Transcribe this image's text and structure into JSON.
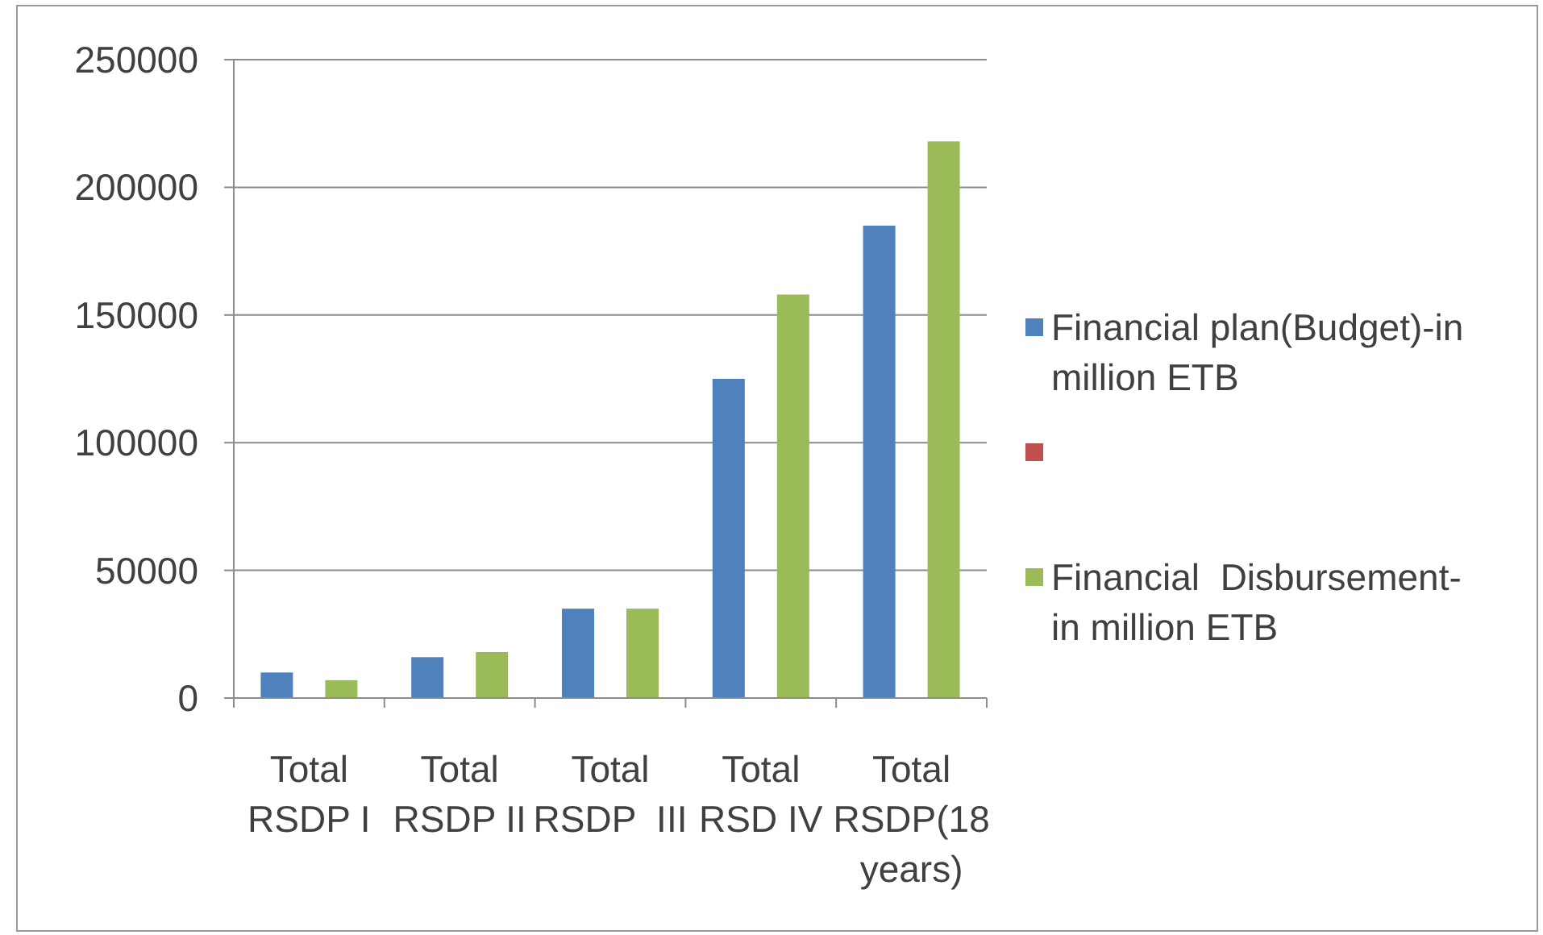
{
  "chart_data": {
    "type": "bar",
    "categories": [
      "Total RSDP I",
      "Total RSDP II",
      "Total RSDP  III",
      "Total RSD IV",
      "Total RSDP(18 years)"
    ],
    "series": [
      {
        "name": "Financial plan(Budget)-in million ETB",
        "color": "#4f81bd",
        "values": [
          10000,
          16000,
          35000,
          125000,
          185000
        ]
      },
      {
        "color": "#c0504d",
        "values": [
          null,
          null,
          null,
          null,
          null
        ]
      },
      {
        "name": "Financial  Disbursement-in million ETB",
        "color": "#9bbb59",
        "values": [
          7000,
          18000,
          35000,
          158000,
          218000
        ]
      }
    ],
    "ylim": [
      0,
      250000
    ],
    "yticks": [
      0,
      50000,
      100000,
      150000,
      200000,
      250000
    ],
    "grid": "y",
    "legend": "right"
  }
}
